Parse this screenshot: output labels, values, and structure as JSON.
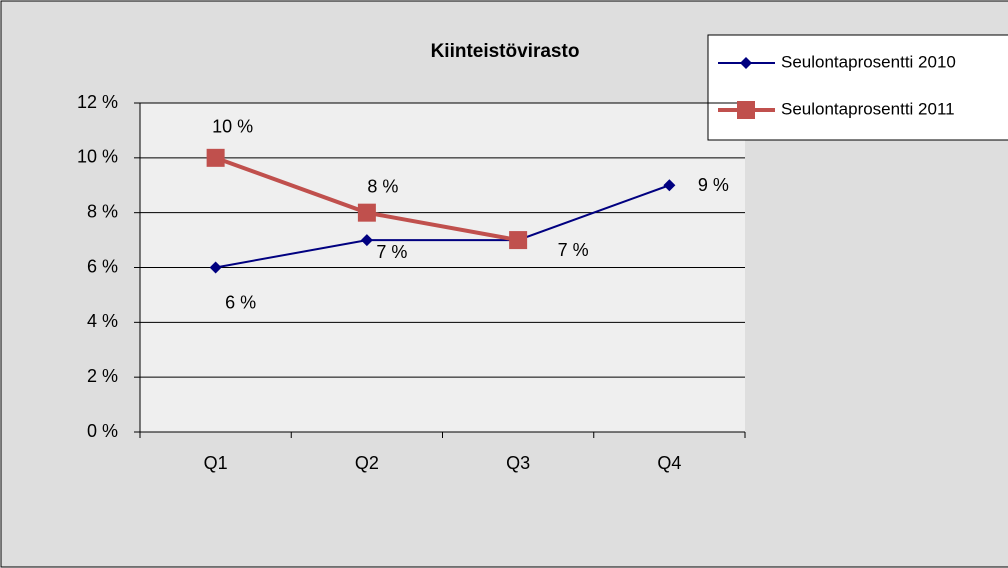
{
  "chart_data": {
    "type": "line",
    "title": "Kiinteistövirasto",
    "categories": [
      "Q1",
      "Q2",
      "Q3",
      "Q4"
    ],
    "series": [
      {
        "name": "Seulontaprosentti 2010",
        "color": "#000080",
        "marker": "diamond",
        "values": [
          6,
          7,
          7,
          9
        ],
        "value_labels": [
          "6 %",
          "7 %",
          "7 %",
          "9 %"
        ]
      },
      {
        "name": "Seulontaprosentti 2011",
        "color": "#c0504d",
        "marker": "square",
        "values": [
          10,
          8,
          7,
          null
        ],
        "value_labels": [
          "10 %",
          "8 %",
          null,
          null
        ]
      }
    ],
    "ylim": [
      0,
      12
    ],
    "yticks": [
      {
        "value": 0,
        "label": "0 %"
      },
      {
        "value": 2,
        "label": "2 %"
      },
      {
        "value": 4,
        "label": "4 %"
      },
      {
        "value": 6,
        "label": "6 %"
      },
      {
        "value": 8,
        "label": "8 %"
      },
      {
        "value": 10,
        "label": "10 %"
      },
      {
        "value": 12,
        "label": "12 %"
      }
    ],
    "grid": true,
    "legend": "top-right"
  }
}
